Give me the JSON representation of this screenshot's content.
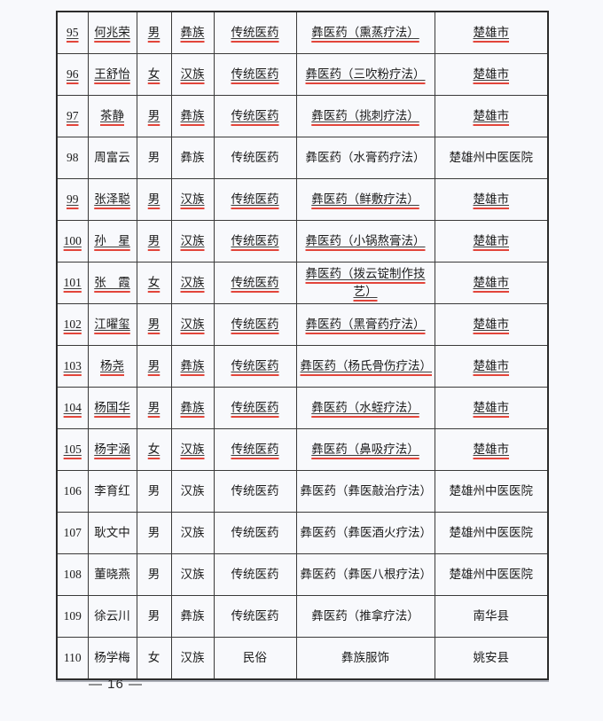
{
  "page": {
    "background": "#f8f9fc",
    "footer_page_number": "— 16 —"
  },
  "colors": {
    "revision_underline_red": "#e2453b",
    "text_underline_black": "#3d3d3d",
    "table_border": "#2c2c2c",
    "text": "#1b1b1b"
  },
  "table": {
    "columns": [
      {
        "key": "no",
        "name": "cell-number"
      },
      {
        "key": "name",
        "name": "cell-name"
      },
      {
        "key": "gender",
        "name": "cell-gender"
      },
      {
        "key": "ethnicity",
        "name": "cell-ethnicity"
      },
      {
        "key": "category",
        "name": "cell-category"
      },
      {
        "key": "project",
        "name": "cell-project"
      },
      {
        "key": "location",
        "name": "cell-location"
      }
    ],
    "rows": [
      {
        "no": "95",
        "name": "何兆荣",
        "gender": "男",
        "ethnicity": "彝族",
        "category": "传统医药",
        "project": "彝医药（熏蒸疗法）",
        "location": "楚雄市",
        "marked": true
      },
      {
        "no": "96",
        "name": "王舒怡",
        "gender": "女",
        "ethnicity": "汉族",
        "category": "传统医药",
        "project": "彝医药（三吹粉疗法）",
        "location": "楚雄市",
        "marked": true
      },
      {
        "no": "97",
        "name": "茶静",
        "gender": "男",
        "ethnicity": "彝族",
        "category": "传统医药",
        "project": "彝医药（挑刺疗法）",
        "location": "楚雄市",
        "marked": true
      },
      {
        "no": "98",
        "name": "周富云",
        "gender": "男",
        "ethnicity": "彝族",
        "category": "传统医药",
        "project": "彝医药（水膏药疗法）",
        "location": "楚雄州中医医院",
        "marked": false
      },
      {
        "no": "99",
        "name": "张泽聪",
        "gender": "男",
        "ethnicity": "汉族",
        "category": "传统医药",
        "project": "彝医药（鲜敷疗法）",
        "location": "楚雄市",
        "marked": true
      },
      {
        "no": "100",
        "name": "孙　星",
        "gender": "男",
        "ethnicity": "汉族",
        "category": "传统医药",
        "project": "彝医药（小锅熬膏法）",
        "location": "楚雄市",
        "marked": true
      },
      {
        "no": "101",
        "name": "张　霞",
        "gender": "女",
        "ethnicity": "汉族",
        "category": "传统医药",
        "project": "彝医药（拨云锭制作技艺）",
        "location": "楚雄市",
        "marked": true
      },
      {
        "no": "102",
        "name": "江曜玺",
        "gender": "男",
        "ethnicity": "汉族",
        "category": "传统医药",
        "project": "彝医药（黑膏药疗法）",
        "location": "楚雄市",
        "marked": true
      },
      {
        "no": "103",
        "name": "杨尧",
        "gender": "男",
        "ethnicity": "彝族",
        "category": "传统医药",
        "project": "彝医药（杨氏骨伤疗法）",
        "location": "楚雄市",
        "marked": true
      },
      {
        "no": "104",
        "name": "杨国华",
        "gender": "男",
        "ethnicity": "彝族",
        "category": "传统医药",
        "project": "彝医药（水蛭疗法）",
        "location": "楚雄市",
        "marked": true
      },
      {
        "no": "105",
        "name": "杨宇涵",
        "gender": "女",
        "ethnicity": "汉族",
        "category": "传统医药",
        "project": "彝医药（鼻吸疗法）",
        "location": "楚雄市",
        "marked": true
      },
      {
        "no": "106",
        "name": "李育红",
        "gender": "男",
        "ethnicity": "汉族",
        "category": "传统医药",
        "project": "彝医药（彝医敲治疗法）",
        "location": "楚雄州中医医院",
        "marked": false
      },
      {
        "no": "107",
        "name": "耿文中",
        "gender": "男",
        "ethnicity": "汉族",
        "category": "传统医药",
        "project": "彝医药（彝医酒火疗法）",
        "location": "楚雄州中医医院",
        "marked": false
      },
      {
        "no": "108",
        "name": "董晓燕",
        "gender": "男",
        "ethnicity": "汉族",
        "category": "传统医药",
        "project": "彝医药（彝医八根疗法）",
        "location": "楚雄州中医医院",
        "marked": false
      },
      {
        "no": "109",
        "name": "徐云川",
        "gender": "男",
        "ethnicity": "彝族",
        "category": "传统医药",
        "project": "彝医药（推拿疗法）",
        "location": "南华县",
        "marked": false
      },
      {
        "no": "110",
        "name": "杨学梅",
        "gender": "女",
        "ethnicity": "汉族",
        "category": "民俗",
        "project": "彝族服饰",
        "location": "姚安县",
        "marked": false
      }
    ]
  }
}
